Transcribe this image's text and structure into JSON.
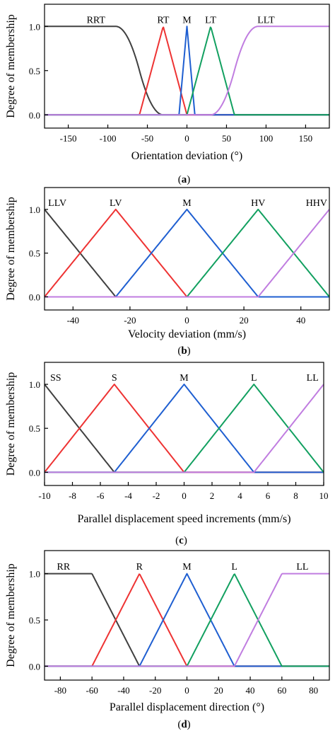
{
  "chart_data": [
    {
      "type": "line",
      "panel_label": "a",
      "xlabel": "Orientation deviation (°)",
      "ylabel": "Degree of membership",
      "xlim": [
        -180,
        180
      ],
      "ylim": [
        -0.15,
        1.25
      ],
      "xticks": [
        -150,
        -100,
        -50,
        0,
        50,
        100,
        150
      ],
      "yticks": [
        0.0,
        0.5,
        1.0
      ],
      "grid": false,
      "series": [
        {
          "name": "RRT",
          "color": "#404040",
          "shape": "zshape",
          "params": [
            -90,
            -30
          ]
        },
        {
          "name": "RT",
          "color": "#ee3333",
          "shape": "tri",
          "params": [
            -60,
            -30,
            0
          ]
        },
        {
          "name": "M",
          "color": "#1f5fd1",
          "shape": "tri",
          "params": [
            -10,
            0,
            10
          ]
        },
        {
          "name": "LT",
          "color": "#12a060",
          "shape": "tri",
          "params": [
            0,
            30,
            60
          ]
        },
        {
          "name": "LLT",
          "color": "#c07de0",
          "shape": "sshape",
          "params": [
            30,
            90
          ]
        }
      ],
      "labels": [
        {
          "text": "RRT",
          "x": -115,
          "y": 1.08
        },
        {
          "text": "RT",
          "x": -30,
          "y": 1.08
        },
        {
          "text": "M",
          "x": 0,
          "y": 1.08
        },
        {
          "text": "LT",
          "x": 30,
          "y": 1.08
        },
        {
          "text": "LLT",
          "x": 100,
          "y": 1.08
        }
      ]
    },
    {
      "type": "line",
      "panel_label": "b",
      "xlabel": "Velocity deviation (mm/s)",
      "ylabel": "Degree of membership",
      "xlim": [
        -50,
        50
      ],
      "ylim": [
        -0.15,
        1.25
      ],
      "xticks": [
        -40,
        -20,
        0,
        20,
        40
      ],
      "yticks": [
        0.0,
        0.5,
        1.0
      ],
      "grid": false,
      "series": [
        {
          "name": "LLV",
          "color": "#404040",
          "shape": "tri",
          "params": [
            -75,
            -50,
            -25
          ]
        },
        {
          "name": "LV",
          "color": "#ee3333",
          "shape": "tri",
          "params": [
            -50,
            -25,
            0
          ]
        },
        {
          "name": "M",
          "color": "#1f5fd1",
          "shape": "tri",
          "params": [
            -25,
            0,
            25
          ]
        },
        {
          "name": "HV",
          "color": "#12a060",
          "shape": "tri",
          "params": [
            0,
            25,
            50
          ]
        },
        {
          "name": "HHV",
          "color": "#c07de0",
          "shape": "tri",
          "params": [
            25,
            50,
            75
          ]
        }
      ],
      "labels": [
        {
          "text": "LLV",
          "x": -45.5,
          "y": 1.08
        },
        {
          "text": "LV",
          "x": -25,
          "y": 1.08
        },
        {
          "text": "M",
          "x": 0,
          "y": 1.08
        },
        {
          "text": "HV",
          "x": 25,
          "y": 1.08
        },
        {
          "text": "HHV",
          "x": 45.5,
          "y": 1.08
        }
      ]
    },
    {
      "type": "line",
      "panel_label": "c",
      "xlabel": "Parallel displacement speed increments (mm/s)",
      "ylabel": "Degree of membership",
      "xlim": [
        -10,
        10
      ],
      "ylim": [
        -0.15,
        1.25
      ],
      "xticks": [
        -10,
        -8,
        -6,
        -4,
        -2,
        0,
        2,
        4,
        6,
        8,
        10
      ],
      "yticks": [
        0.0,
        0.5,
        1.0
      ],
      "grid": false,
      "series": [
        {
          "name": "SS",
          "color": "#404040",
          "shape": "tri",
          "params": [
            -15,
            -10,
            -5
          ]
        },
        {
          "name": "S",
          "color": "#ee3333",
          "shape": "tri",
          "params": [
            -10,
            -5,
            0
          ]
        },
        {
          "name": "M",
          "color": "#1f5fd1",
          "shape": "tri",
          "params": [
            -5,
            0,
            5
          ]
        },
        {
          "name": "L",
          "color": "#12a060",
          "shape": "tri",
          "params": [
            0,
            5,
            10
          ]
        },
        {
          "name": "LL",
          "color": "#c07de0",
          "shape": "tri",
          "params": [
            5,
            10,
            15
          ]
        }
      ],
      "labels": [
        {
          "text": "SS",
          "x": -9.2,
          "y": 1.08
        },
        {
          "text": "S",
          "x": -5,
          "y": 1.08
        },
        {
          "text": "M",
          "x": 0,
          "y": 1.08
        },
        {
          "text": "L",
          "x": 5,
          "y": 1.08
        },
        {
          "text": "LL",
          "x": 9.2,
          "y": 1.08
        }
      ]
    },
    {
      "type": "line",
      "panel_label": "d",
      "xlabel": "Parallel displacement direction (°)",
      "ylabel": "Degree of membership",
      "xlim": [
        -90,
        90
      ],
      "ylim": [
        -0.15,
        1.25
      ],
      "xticks": [
        -80,
        -60,
        -40,
        -20,
        0,
        20,
        40,
        60,
        80
      ],
      "yticks": [
        0.0,
        0.5,
        1.0
      ],
      "grid": false,
      "series": [
        {
          "name": "RR",
          "color": "#404040",
          "shape": "zlinear",
          "params": [
            -60,
            -30
          ]
        },
        {
          "name": "R",
          "color": "#ee3333",
          "shape": "tri",
          "params": [
            -60,
            -30,
            0
          ]
        },
        {
          "name": "M",
          "color": "#1f5fd1",
          "shape": "tri",
          "params": [
            -30,
            0,
            30
          ]
        },
        {
          "name": "L",
          "color": "#12a060",
          "shape": "tri",
          "params": [
            0,
            30,
            60
          ]
        },
        {
          "name": "LL",
          "color": "#c07de0",
          "shape": "slinear",
          "params": [
            30,
            60
          ]
        }
      ],
      "labels": [
        {
          "text": "RR",
          "x": -78,
          "y": 1.08
        },
        {
          "text": "R",
          "x": -30,
          "y": 1.08
        },
        {
          "text": "M",
          "x": 0,
          "y": 1.08
        },
        {
          "text": "L",
          "x": 30,
          "y": 1.08
        },
        {
          "text": "LL",
          "x": 73,
          "y": 1.08
        }
      ]
    }
  ]
}
